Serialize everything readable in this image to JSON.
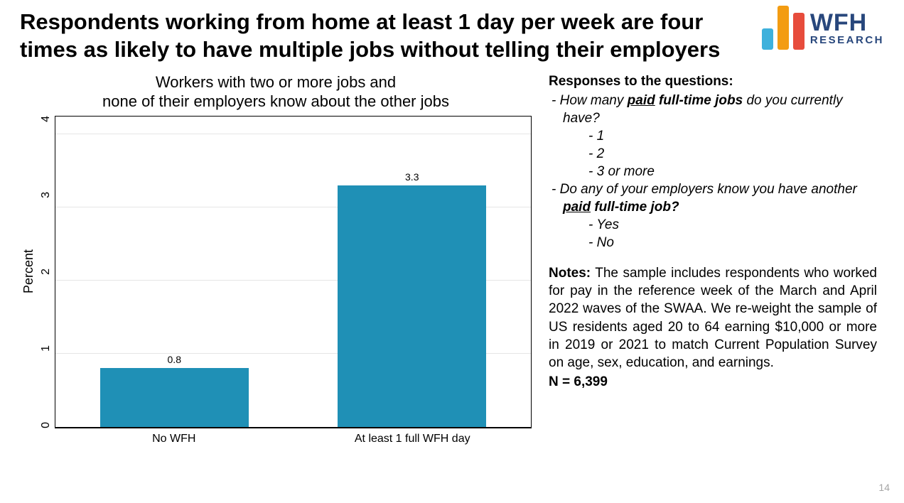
{
  "slide": {
    "title": "Respondents working from home at least 1 day per week are four times as likely to have multiple jobs without telling their employers",
    "page_number": "14"
  },
  "logo": {
    "main_text": "WFH",
    "sub_text": "RESEARCH",
    "text_color": "#28477c",
    "bars": [
      {
        "height": 30,
        "color": "#3eb1dc"
      },
      {
        "height": 62,
        "color": "#f39c12"
      },
      {
        "height": 52,
        "color": "#e74c3c"
      }
    ]
  },
  "chart": {
    "type": "bar",
    "title_line1": "Workers with two or more jobs and",
    "title_line2": "none of their employers know about the other jobs",
    "ylabel": "Percent",
    "ylim": [
      0,
      4.25
    ],
    "yticks": [
      "4",
      "3",
      "2",
      "1",
      "0"
    ],
    "ytick_values": [
      4,
      3,
      2,
      1,
      0
    ],
    "categories": [
      "No WFH",
      "At least 1 full WFH day"
    ],
    "values": [
      0.8,
      3.3
    ],
    "value_labels": [
      "0.8",
      "3.3"
    ],
    "bar_color": "#1f90b6",
    "background_color": "#ffffff",
    "grid_color": "#e6e6e6",
    "title_fontsize": 22,
    "label_fontsize": 18,
    "tick_fontsize": 16
  },
  "right_panel": {
    "questions_heading": "Responses to the questions:",
    "q1_prefix": "How many ",
    "q1_bold_underline": "paid",
    "q1_bold_rest": " full-time jobs",
    "q1_suffix": " do you currently have?",
    "q1_options": [
      "1",
      "2",
      "3 or more"
    ],
    "q2_prefix": "Do any of your employers know you have another ",
    "q2_bold_underline": "paid",
    "q2_bold_rest": " full-time job?",
    "q2_options": [
      "Yes",
      "No"
    ],
    "notes_label": "Notes:",
    "notes_body": " The sample includes respondents who worked for pay in the reference week of the March and April 2022 waves of the SWAA. We re-weight the sample of US residents aged 20 to 64 earning $10,000 or more in 2019 or 2021 to match Current Population Survey on age, sex, education, and earnings.",
    "n_value": "N = 6,399"
  }
}
